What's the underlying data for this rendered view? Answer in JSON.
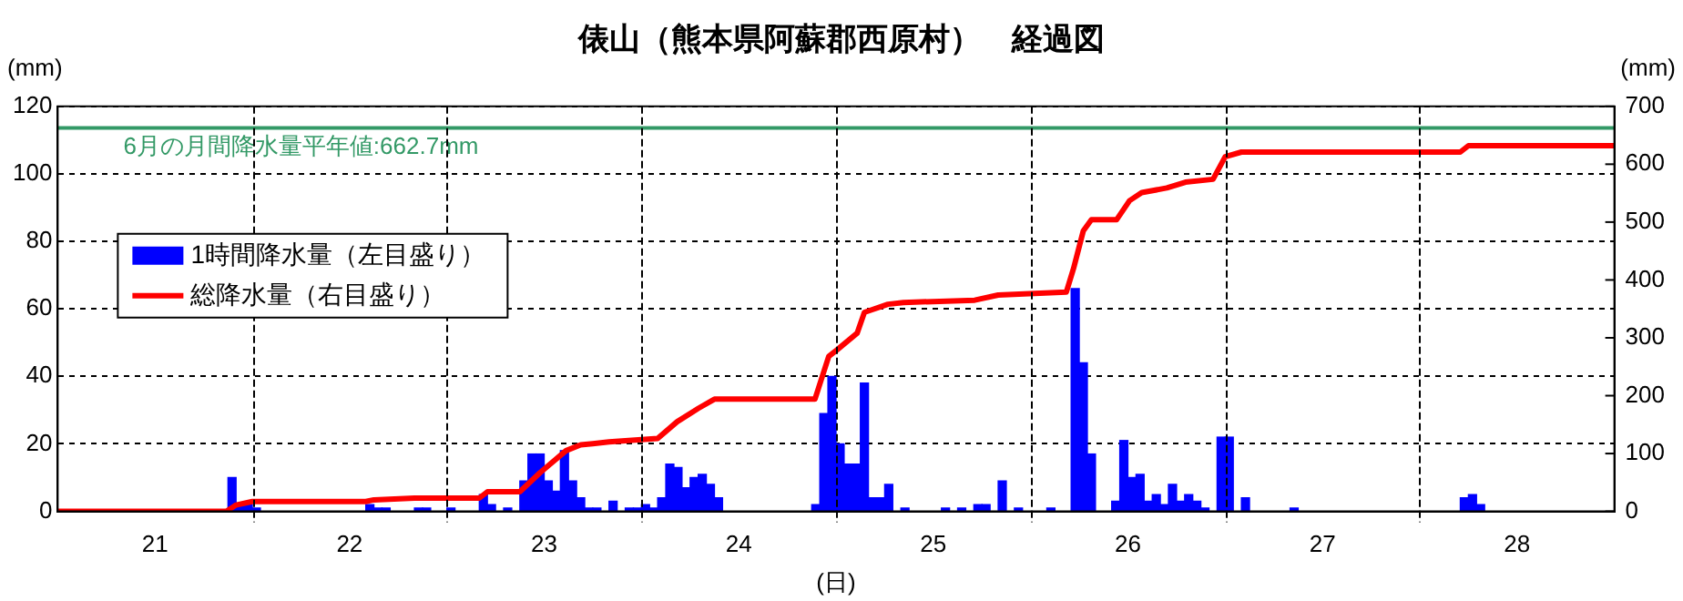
{
  "chart_data": {
    "type": "bar",
    "title": "俵山（熊本県阿蘇郡西原村）　経過図",
    "xlabel": "(日)",
    "ylabel": "(mm)",
    "y2label": "(mm)",
    "xlim": [
      "--06-21",
      "--06-29"
    ],
    "xticks": [
      {
        "value": "--06-21T12:00",
        "label": "21"
      },
      {
        "value": "--06-22",
        "label": null
      },
      {
        "value": "--06-22T12:00",
        "label": "22"
      },
      {
        "value": "--06-23",
        "label": null
      },
      {
        "value": "--06-23T12:00",
        "label": "23"
      },
      {
        "value": "--06-24",
        "label": null
      },
      {
        "value": "--06-24T12:00",
        "label": "24"
      },
      {
        "value": "--06-25",
        "label": null
      },
      {
        "value": "--06-25T12:00",
        "label": "25"
      },
      {
        "value": "--06-26",
        "label": null
      },
      {
        "value": "--06-26T12:00",
        "label": "26"
      },
      {
        "value": "--06-27",
        "label": null
      },
      {
        "value": "--06-27T12:00",
        "label": "27"
      },
      {
        "value": "--06-28",
        "label": null
      },
      {
        "value": "--06-28T12:00",
        "label": "28"
      }
    ],
    "ylim": [
      0,
      120
    ],
    "yticks": [
      0,
      20,
      40,
      60,
      80,
      100,
      120
    ],
    "y2lim": [
      0,
      700
    ],
    "y2ticks": [
      0,
      100,
      200,
      300,
      400,
      500,
      600,
      700
    ],
    "series": [
      {
        "name": "1時間降水量（左目盛り）",
        "color": "#0000ff",
        "x": [
          "--06-21T21:30",
          "--06-21T22:30",
          "--06-21T23:30",
          "--06-22T00:30",
          "--06-22T14:30",
          "--06-22T15:30",
          "--06-22T16:30",
          "--06-22T20:30",
          "--06-22T21:30",
          "--06-23T00:30",
          "--06-23T04:30",
          "--06-23T05:30",
          "--06-23T07:30",
          "--06-23T09:30",
          "--06-23T10:30",
          "--06-23T11:30",
          "--06-23T12:30",
          "--06-23T13:30",
          "--06-23T14:30",
          "--06-23T15:30",
          "--06-23T16:30",
          "--06-23T17:30",
          "--06-23T18:30",
          "--06-23T20:30",
          "--06-23T22:30",
          "--06-23T23:30",
          "--06-24T00:30",
          "--06-24T01:30",
          "--06-24T02:30",
          "--06-24T03:30",
          "--06-24T04:30",
          "--06-24T05:30",
          "--06-24T06:30",
          "--06-24T07:30",
          "--06-24T08:30",
          "--06-24T09:30",
          "--06-24T21:30",
          "--06-24T22:30",
          "--06-24T23:30",
          "--06-25T00:30",
          "--06-25T01:30",
          "--06-25T02:30",
          "--06-25T03:30",
          "--06-25T04:30",
          "--06-25T05:30",
          "--06-25T06:30",
          "--06-25T08:30",
          "--06-25T13:30",
          "--06-25T15:30",
          "--06-25T17:30",
          "--06-25T18:30",
          "--06-25T20:30",
          "--06-25T22:30",
          "--06-26T02:30",
          "--06-26T05:30",
          "--06-26T06:30",
          "--06-26T07:30",
          "--06-26T10:30",
          "--06-26T11:30",
          "--06-26T12:30",
          "--06-26T13:30",
          "--06-26T14:30",
          "--06-26T15:30",
          "--06-26T16:30",
          "--06-26T17:30",
          "--06-26T18:30",
          "--06-26T19:30",
          "--06-26T20:30",
          "--06-26T21:30",
          "--06-26T23:30",
          "--06-27T00:30",
          "--06-27T02:30",
          "--06-27T08:30",
          "--06-28T05:30",
          "--06-28T06:30",
          "--06-28T07:30"
        ],
        "values": [
          10,
          2,
          2,
          1,
          2,
          1,
          1,
          1,
          1,
          1,
          5,
          2,
          1,
          9,
          17,
          17,
          9,
          6,
          18,
          9,
          4,
          1,
          1,
          3,
          1,
          1,
          2,
          1,
          4,
          14,
          13,
          7,
          10,
          11,
          8,
          4,
          2,
          29,
          40,
          20,
          14,
          14,
          38,
          4,
          4,
          8,
          1,
          1,
          1,
          2,
          2,
          9,
          1,
          1,
          66,
          44,
          17,
          3,
          21,
          10,
          11,
          3,
          5,
          2,
          8,
          3,
          5,
          3,
          1,
          22,
          22,
          4,
          1,
          4,
          5,
          2
        ]
      },
      {
        "name": "総降水量（右目盛り）",
        "type": "line",
        "axis": "y2",
        "color": "#ff0000",
        "x": [
          "--06-21T00:00",
          "--06-21T20:48",
          "--06-21T22:00",
          "--06-22T00:00",
          "--06-22T14:00",
          "--06-22T15:00",
          "--06-22T20:00",
          "--06-23T04:00",
          "--06-23T05:00",
          "--06-23T09:00",
          "--06-23T11:30",
          "--06-23T14:42",
          "--06-23T16:30",
          "--06-23T18:00",
          "--06-23T20:00",
          "--06-24T02:00",
          "--06-24T04:24",
          "--06-24T07:00",
          "--06-24T09:00",
          "--06-24T21:24",
          "--06-24T23:06",
          "--06-25T00:06",
          "--06-25T02:36",
          "--06-25T03:30",
          "--06-25T06:24",
          "--06-25T08:18",
          "--06-25T17:06",
          "--06-25T20:00",
          "--06-26T04:24",
          "--06-26T05:18",
          "--06-26T06:30",
          "--06-26T07:30",
          "--06-26T10:36",
          "--06-26T12:12",
          "--06-26T13:42",
          "--06-26T16:48",
          "--06-26T19:06",
          "--06-26T22:30",
          "--06-27T00:00",
          "--06-27T02:00",
          "--06-28T05:00",
          "--06-28T06:00",
          "--06-29T00:00"
        ],
        "values": [
          0,
          0,
          11,
          17,
          17,
          20,
          23,
          23,
          34,
          34,
          67,
          105,
          115,
          117,
          120,
          126,
          155,
          178,
          194,
          194,
          268,
          279,
          308,
          344,
          358,
          361,
          365,
          374,
          379,
          420,
          485,
          504,
          504,
          537,
          551,
          559,
          569,
          574,
          613,
          621,
          621,
          632,
          632
        ]
      }
    ],
    "ref_lines": [
      {
        "axis": "y2",
        "value": 662.7,
        "label": "6月の月間降水量平年値:662.7mm",
        "color": "#339966"
      }
    ],
    "grid": true,
    "legend": "top left",
    "marker": "none"
  }
}
